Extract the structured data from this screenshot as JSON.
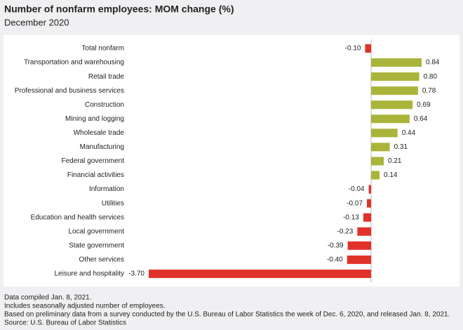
{
  "chart_data": {
    "type": "hbar",
    "title": "Number of nonfarm employees: MOM change (%)",
    "subtitle": "December 2020",
    "categories": [
      "Total nonfarm",
      "Transportation and warehousing",
      "Retail trade",
      "Professional and business services",
      "Construction",
      "Mining and logging",
      "Wholesale trade",
      "Manufacturing",
      "Federal government",
      "Financial activities",
      "Information",
      "Utilities",
      "Education and health services",
      "Local government",
      "State government",
      "Other services",
      "Leisure and hospitality"
    ],
    "values": [
      -0.1,
      0.84,
      0.8,
      0.78,
      0.69,
      0.64,
      0.44,
      0.31,
      0.21,
      0.14,
      -0.04,
      -0.07,
      -0.13,
      -0.23,
      -0.39,
      -0.4,
      -3.7
    ],
    "value_labels": [
      "-0.10",
      "0.84",
      "0.80",
      "0.78",
      "0.69",
      "0.64",
      "0.44",
      "0.31",
      "0.21",
      "0.14",
      "-0.04",
      "-0.07",
      "-0.13",
      "-0.23",
      "-0.39",
      "-0.40",
      "-3.70"
    ],
    "positive_color": "#a9b43a",
    "negative_color": "#e0322b",
    "notes": [
      "Data compiled Jan. 8, 2021.",
      "Includes seasonally adjusted number of employees.",
      "Based on preliminary data from a survey conducted by the U.S. Bureau of Labor Statistics the week of Dec. 6, 2020, and released Jan. 8, 2021.",
      "Source: U.S. Bureau of Labor Statistics"
    ]
  }
}
